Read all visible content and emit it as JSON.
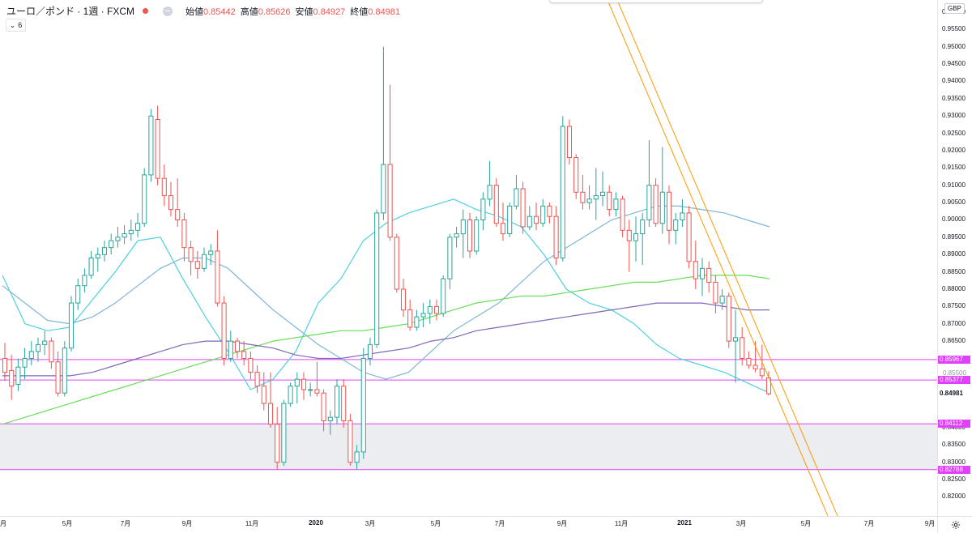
{
  "legend": {
    "symbol": "ユーロ／ポンド · 1週 · FXCM",
    "ohlc": [
      {
        "label": "始値",
        "value": "0.85442"
      },
      {
        "label": "高値",
        "value": "0.85626"
      },
      {
        "label": "安値",
        "value": "0.84927"
      },
      {
        "label": "終値",
        "value": "0.84981"
      }
    ],
    "indicator_count": "6",
    "icons": [
      "status-dot-icon",
      "hide-icon",
      "chevron-down-icon"
    ]
  },
  "currency": "GBP",
  "price_axis": {
    "ticks": [
      "0.96000",
      "0.95500",
      "0.95000",
      "0.94500",
      "0.94000",
      "0.93500",
      "0.93000",
      "0.92500",
      "0.92000",
      "0.91500",
      "0.91000",
      "0.90500",
      "0.90000",
      "0.89500",
      "0.89000",
      "0.88500",
      "0.88000",
      "0.87500",
      "0.87000",
      "0.86500",
      "0.84000",
      "0.83500",
      "0.83000",
      "0.82500",
      "0.82000"
    ],
    "tags": [
      {
        "label": "0.85967",
        "value": 0.85967,
        "color": "#e040fb"
      },
      {
        "label": "0.85377",
        "value": 0.85377,
        "color": "#e040fb"
      },
      {
        "label": "0.84981",
        "value": 0.84981,
        "color": "plain"
      },
      {
        "label": "0.84112",
        "value": 0.84112,
        "color": "#e040fb"
      },
      {
        "label": "0.82788",
        "value": 0.82788,
        "color": "#e040fb"
      }
    ],
    "partial_labels": [
      "0.85500"
    ]
  },
  "time_axis": {
    "labels": [
      {
        "text": "月",
        "bold": false
      },
      {
        "text": "5月",
        "bold": false
      },
      {
        "text": "7月",
        "bold": false
      },
      {
        "text": "9月",
        "bold": false
      },
      {
        "text": "11月",
        "bold": false
      },
      {
        "text": "2020",
        "bold": true
      },
      {
        "text": "3月",
        "bold": false
      },
      {
        "text": "5月",
        "bold": false
      },
      {
        "text": "7月",
        "bold": false
      },
      {
        "text": "9月",
        "bold": false
      },
      {
        "text": "11月",
        "bold": false
      },
      {
        "text": "2021",
        "bold": true
      },
      {
        "text": "3月",
        "bold": false
      },
      {
        "text": "5月",
        "bold": false
      },
      {
        "text": "7月",
        "bold": false
      },
      {
        "text": "9月",
        "bold": false
      }
    ]
  },
  "colors": {
    "up": "#26a69a",
    "down": "#ef5350",
    "ma_cyan": "#4dd0e1",
    "ma_lightblue": "#7fb6d6",
    "ma_green": "#66dd55",
    "ma_purple": "#7e67b8",
    "hline": "#e040fb",
    "zone": "#ebedf0",
    "trend": "#ff9800"
  },
  "chart_data": {
    "type": "candlestick",
    "title": "ユーロ／ポンド 1週 FXCM",
    "ylim": [
      0.8145,
      0.9635
    ],
    "horizontal_levels": [
      0.85967,
      0.85377,
      0.84112,
      0.82788
    ],
    "zone": [
      0.82788,
      0.84112
    ],
    "candles": [
      [
        0.86,
        0.8645,
        0.8535,
        0.856
      ],
      [
        0.8565,
        0.861,
        0.848,
        0.852
      ],
      [
        0.8525,
        0.86,
        0.8505,
        0.8575
      ],
      [
        0.8575,
        0.863,
        0.854,
        0.86
      ],
      [
        0.86,
        0.865,
        0.858,
        0.862
      ],
      [
        0.862,
        0.866,
        0.859,
        0.864
      ],
      [
        0.864,
        0.868,
        0.861,
        0.865
      ],
      [
        0.865,
        0.866,
        0.857,
        0.859
      ],
      [
        0.859,
        0.862,
        0.849,
        0.85
      ],
      [
        0.85,
        0.865,
        0.849,
        0.863
      ],
      [
        0.863,
        0.878,
        0.862,
        0.876
      ],
      [
        0.876,
        0.883,
        0.874,
        0.881
      ],
      [
        0.881,
        0.886,
        0.879,
        0.884
      ],
      [
        0.884,
        0.891,
        0.883,
        0.889
      ],
      [
        0.889,
        0.892,
        0.885,
        0.89
      ],
      [
        0.89,
        0.894,
        0.888,
        0.892
      ],
      [
        0.892,
        0.896,
        0.89,
        0.894
      ],
      [
        0.894,
        0.898,
        0.892,
        0.895
      ],
      [
        0.895,
        0.8985,
        0.893,
        0.896
      ],
      [
        0.896,
        0.9,
        0.894,
        0.897
      ],
      [
        0.897,
        0.902,
        0.895,
        0.899
      ],
      [
        0.899,
        0.915,
        0.898,
        0.913
      ],
      [
        0.913,
        0.932,
        0.911,
        0.93
      ],
      [
        0.929,
        0.933,
        0.91,
        0.912
      ],
      [
        0.912,
        0.916,
        0.904,
        0.907
      ],
      [
        0.907,
        0.911,
        0.901,
        0.903
      ],
      [
        0.903,
        0.912,
        0.898,
        0.9
      ],
      [
        0.9,
        0.902,
        0.888,
        0.892
      ],
      [
        0.892,
        0.894,
        0.884,
        0.888
      ],
      [
        0.888,
        0.891,
        0.883,
        0.886
      ],
      [
        0.886,
        0.892,
        0.885,
        0.89
      ],
      [
        0.89,
        0.893,
        0.887,
        0.891
      ],
      [
        0.891,
        0.897,
        0.875,
        0.876
      ],
      [
        0.876,
        0.878,
        0.858,
        0.86
      ],
      [
        0.86,
        0.868,
        0.859,
        0.865
      ],
      [
        0.865,
        0.866,
        0.86,
        0.862
      ],
      [
        0.862,
        0.865,
        0.858,
        0.86
      ],
      [
        0.86,
        0.862,
        0.854,
        0.856
      ],
      [
        0.856,
        0.858,
        0.85,
        0.852
      ],
      [
        0.852,
        0.856,
        0.845,
        0.847
      ],
      [
        0.847,
        0.856,
        0.84,
        0.841
      ],
      [
        0.841,
        0.846,
        0.828,
        0.83
      ],
      [
        0.83,
        0.848,
        0.829,
        0.847
      ],
      [
        0.847,
        0.853,
        0.846,
        0.852
      ],
      [
        0.852,
        0.856,
        0.847,
        0.854
      ],
      [
        0.854,
        0.856,
        0.848,
        0.851
      ],
      [
        0.851,
        0.853,
        0.849,
        0.851
      ],
      [
        0.851,
        0.859,
        0.849,
        0.85
      ],
      [
        0.85,
        0.851,
        0.839,
        0.842
      ],
      [
        0.842,
        0.845,
        0.838,
        0.843
      ],
      [
        0.843,
        0.854,
        0.841,
        0.852
      ],
      [
        0.852,
        0.854,
        0.84,
        0.842
      ],
      [
        0.842,
        0.844,
        0.829,
        0.83
      ],
      [
        0.83,
        0.835,
        0.828,
        0.833
      ],
      [
        0.833,
        0.863,
        0.831,
        0.86
      ],
      [
        0.86,
        0.866,
        0.858,
        0.864
      ],
      [
        0.864,
        0.903,
        0.863,
        0.902
      ],
      [
        0.902,
        0.95,
        0.9,
        0.916
      ],
      [
        0.916,
        0.939,
        0.894,
        0.895
      ],
      [
        0.895,
        0.896,
        0.879,
        0.88
      ],
      [
        0.88,
        0.883,
        0.872,
        0.874
      ],
      [
        0.874,
        0.877,
        0.868,
        0.869
      ],
      [
        0.869,
        0.874,
        0.868,
        0.872
      ],
      [
        0.872,
        0.876,
        0.869,
        0.873
      ],
      [
        0.873,
        0.877,
        0.87,
        0.875
      ],
      [
        0.875,
        0.877,
        0.871,
        0.873
      ],
      [
        0.873,
        0.884,
        0.872,
        0.883
      ],
      [
        0.883,
        0.896,
        0.88,
        0.895
      ],
      [
        0.895,
        0.898,
        0.892,
        0.896
      ],
      [
        0.896,
        0.903,
        0.889,
        0.9
      ],
      [
        0.9,
        0.902,
        0.889,
        0.891
      ],
      [
        0.891,
        0.901,
        0.89,
        0.9
      ],
      [
        0.9,
        0.908,
        0.897,
        0.906
      ],
      [
        0.906,
        0.917,
        0.904,
        0.91
      ],
      [
        0.91,
        0.912,
        0.898,
        0.899
      ],
      [
        0.899,
        0.905,
        0.894,
        0.896
      ],
      [
        0.896,
        0.905,
        0.895,
        0.904
      ],
      [
        0.904,
        0.913,
        0.903,
        0.909
      ],
      [
        0.909,
        0.911,
        0.896,
        0.898
      ],
      [
        0.898,
        0.904,
        0.897,
        0.901
      ],
      [
        0.901,
        0.905,
        0.897,
        0.899
      ],
      [
        0.899,
        0.906,
        0.898,
        0.904
      ],
      [
        0.904,
        0.905,
        0.899,
        0.901
      ],
      [
        0.901,
        0.904,
        0.887,
        0.889
      ],
      [
        0.889,
        0.93,
        0.888,
        0.927
      ],
      [
        0.927,
        0.929,
        0.916,
        0.918
      ],
      [
        0.918,
        0.919,
        0.906,
        0.908
      ],
      [
        0.908,
        0.913,
        0.903,
        0.905
      ],
      [
        0.905,
        0.91,
        0.903,
        0.906
      ],
      [
        0.906,
        0.915,
        0.9,
        0.907
      ],
      [
        0.907,
        0.914,
        0.904,
        0.908
      ],
      [
        0.908,
        0.91,
        0.901,
        0.903
      ],
      [
        0.903,
        0.908,
        0.901,
        0.906
      ],
      [
        0.906,
        0.907,
        0.895,
        0.897
      ],
      [
        0.897,
        0.9,
        0.885,
        0.894
      ],
      [
        0.894,
        0.901,
        0.888,
        0.896
      ],
      [
        0.896,
        0.902,
        0.887,
        0.9
      ],
      [
        0.9,
        0.923,
        0.898,
        0.91
      ],
      [
        0.91,
        0.912,
        0.898,
        0.899
      ],
      [
        0.899,
        0.921,
        0.896,
        0.908
      ],
      [
        0.908,
        0.91,
        0.893,
        0.897
      ],
      [
        0.897,
        0.902,
        0.893,
        0.9
      ],
      [
        0.9,
        0.906,
        0.898,
        0.902
      ],
      [
        0.902,
        0.904,
        0.886,
        0.888
      ],
      [
        0.888,
        0.894,
        0.88,
        0.883
      ],
      [
        0.883,
        0.889,
        0.878,
        0.886
      ],
      [
        0.886,
        0.888,
        0.879,
        0.882
      ],
      [
        0.882,
        0.884,
        0.873,
        0.876
      ],
      [
        0.876,
        0.88,
        0.874,
        0.878
      ],
      [
        0.878,
        0.879,
        0.863,
        0.865
      ],
      [
        0.865,
        0.874,
        0.853,
        0.866
      ],
      [
        0.866,
        0.869,
        0.858,
        0.86
      ],
      [
        0.86,
        0.862,
        0.857,
        0.858
      ],
      [
        0.858,
        0.865,
        0.856,
        0.857
      ],
      [
        0.857,
        0.864,
        0.854,
        0.855
      ],
      [
        0.8544,
        0.8563,
        0.8493,
        0.8498
      ]
    ],
    "moving_averages": [
      {
        "key": "ma_cyan",
        "values": [
          0.884,
          0.87,
          0.868,
          0.869,
          0.877,
          0.885,
          0.894,
          0.895,
          0.883,
          0.872,
          0.862,
          0.851,
          0.854,
          0.862,
          0.876,
          0.883,
          0.894,
          0.899,
          0.902,
          0.904,
          0.906,
          0.903,
          0.901,
          0.898,
          0.89,
          0.88,
          0.876,
          0.874,
          0.87,
          0.864,
          0.86,
          0.858,
          0.856,
          0.853,
          0.85
        ]
      },
      {
        "key": "ma_lightblue",
        "values": [
          0.881,
          0.876,
          0.871,
          0.87,
          0.872,
          0.876,
          0.881,
          0.886,
          0.889,
          0.889,
          0.886,
          0.88,
          0.874,
          0.869,
          0.864,
          0.86,
          0.856,
          0.854,
          0.856,
          0.862,
          0.868,
          0.872,
          0.876,
          0.882,
          0.888,
          0.892,
          0.896,
          0.9,
          0.902,
          0.904,
          0.904,
          0.903,
          0.902,
          0.9,
          0.898
        ]
      },
      {
        "key": "ma_green",
        "values": [
          0.841,
          0.843,
          0.845,
          0.847,
          0.849,
          0.851,
          0.853,
          0.855,
          0.857,
          0.859,
          0.861,
          0.863,
          0.865,
          0.866,
          0.867,
          0.868,
          0.868,
          0.869,
          0.87,
          0.872,
          0.874,
          0.876,
          0.877,
          0.878,
          0.878,
          0.879,
          0.88,
          0.881,
          0.882,
          0.882,
          0.883,
          0.884,
          0.884,
          0.884,
          0.883
        ]
      },
      {
        "key": "ma_purple",
        "values": [
          0.855,
          0.855,
          0.855,
          0.855,
          0.856,
          0.858,
          0.86,
          0.862,
          0.864,
          0.865,
          0.865,
          0.864,
          0.863,
          0.861,
          0.86,
          0.86,
          0.861,
          0.862,
          0.863,
          0.865,
          0.866,
          0.868,
          0.869,
          0.87,
          0.871,
          0.872,
          0.873,
          0.874,
          0.875,
          0.876,
          0.876,
          0.876,
          0.875,
          0.874,
          0.874
        ]
      }
    ]
  }
}
